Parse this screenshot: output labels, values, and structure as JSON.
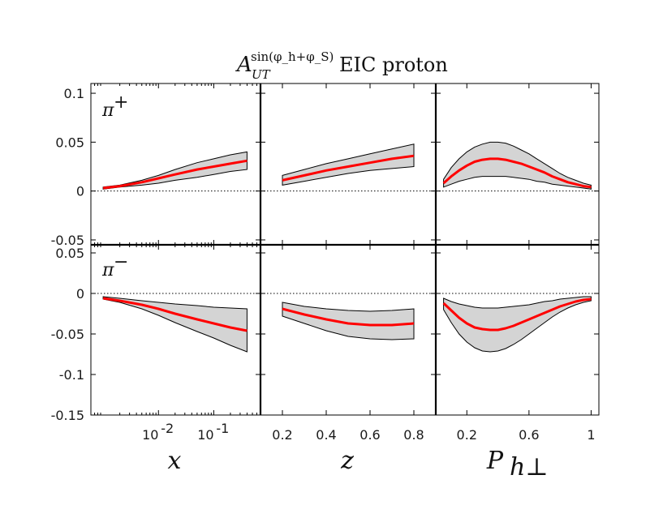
{
  "figure": {
    "title_main": "A",
    "title_sup": "sin(φ_h+φ_S)",
    "title_sub": "UT",
    "title_rest": "EIC proton"
  },
  "chart_data": [
    {
      "type": "line",
      "panel": "pi-plus x",
      "label_base": "π",
      "label_sup": "+",
      "xlabel": "x",
      "xscale": "log",
      "xlim": [
        0.0006,
        0.7
      ],
      "xticks": [
        0.01,
        0.1
      ],
      "xtick_base": "10",
      "xtick_exps": [
        "-2",
        "-1"
      ],
      "ylim": [
        -0.055,
        0.11
      ],
      "yticks": [
        -0.05,
        0,
        0.05,
        0.1
      ],
      "ytick_labels": [
        "-0.05",
        "0",
        "0.05",
        "0.1"
      ],
      "x": [
        0.001,
        0.002,
        0.005,
        0.01,
        0.02,
        0.05,
        0.1,
        0.2,
        0.4
      ],
      "central": [
        0.003,
        0.005,
        0.009,
        0.013,
        0.017,
        0.022,
        0.025,
        0.028,
        0.031
      ],
      "band_low": [
        0.002,
        0.004,
        0.006,
        0.008,
        0.011,
        0.014,
        0.017,
        0.02,
        0.022
      ],
      "band_high": [
        0.004,
        0.006,
        0.011,
        0.016,
        0.022,
        0.029,
        0.033,
        0.037,
        0.04
      ]
    },
    {
      "type": "line",
      "panel": "pi-plus z",
      "xlabel": "z",
      "xlim": [
        0.1,
        0.9
      ],
      "xticks": [
        0.2,
        0.4,
        0.6,
        0.8
      ],
      "xtick_labels": [
        "0.2",
        "0.4",
        "0.6",
        "0.8"
      ],
      "ylim": [
        -0.055,
        0.11
      ],
      "x": [
        0.2,
        0.3,
        0.4,
        0.5,
        0.6,
        0.7,
        0.8
      ],
      "central": [
        0.011,
        0.016,
        0.021,
        0.025,
        0.029,
        0.033,
        0.036
      ],
      "band_low": [
        0.006,
        0.01,
        0.014,
        0.018,
        0.021,
        0.023,
        0.025
      ],
      "band_high": [
        0.016,
        0.022,
        0.028,
        0.033,
        0.038,
        0.043,
        0.048
      ]
    },
    {
      "type": "line",
      "panel": "pi-plus Phperp",
      "xlabel": "P_h⊥",
      "xlim": [
        0.0,
        1.05
      ],
      "xticks": [
        0.2,
        0.6,
        1.0
      ],
      "xtick_labels": [
        "0.2",
        "0.6",
        "1"
      ],
      "ylim": [
        -0.055,
        0.11
      ],
      "x": [
        0.05,
        0.1,
        0.15,
        0.2,
        0.25,
        0.3,
        0.35,
        0.4,
        0.45,
        0.5,
        0.55,
        0.6,
        0.65,
        0.7,
        0.75,
        0.8,
        0.85,
        0.9,
        0.95,
        1.0
      ],
      "central": [
        0.008,
        0.015,
        0.021,
        0.026,
        0.03,
        0.032,
        0.033,
        0.033,
        0.032,
        0.03,
        0.028,
        0.025,
        0.022,
        0.019,
        0.015,
        0.012,
        0.009,
        0.007,
        0.005,
        0.004
      ],
      "band_low": [
        0.004,
        0.007,
        0.01,
        0.012,
        0.014,
        0.015,
        0.015,
        0.015,
        0.015,
        0.014,
        0.013,
        0.012,
        0.01,
        0.009,
        0.007,
        0.006,
        0.005,
        0.004,
        0.003,
        0.002
      ],
      "band_high": [
        0.012,
        0.024,
        0.033,
        0.04,
        0.045,
        0.048,
        0.05,
        0.05,
        0.049,
        0.046,
        0.042,
        0.038,
        0.033,
        0.028,
        0.023,
        0.018,
        0.014,
        0.011,
        0.008,
        0.006
      ]
    },
    {
      "type": "line",
      "panel": "pi-minus x",
      "label_base": "π",
      "label_sup": "−",
      "xlabel": "x",
      "xscale": "log",
      "xlim": [
        0.0006,
        0.7
      ],
      "xticks": [
        0.01,
        0.1
      ],
      "xtick_base": "10",
      "xtick_exps": [
        "-2",
        "-1"
      ],
      "ylim": [
        -0.15,
        0.06
      ],
      "yticks": [
        -0.15,
        -0.1,
        -0.05,
        0,
        0.05
      ],
      "ytick_labels": [
        "-0.15",
        "-0.1",
        "-0.05",
        "0",
        "0.05"
      ],
      "x": [
        0.001,
        0.002,
        0.005,
        0.01,
        0.02,
        0.05,
        0.1,
        0.2,
        0.4
      ],
      "central": [
        -0.006,
        -0.009,
        -0.014,
        -0.019,
        -0.025,
        -0.032,
        -0.037,
        -0.042,
        -0.046
      ],
      "band_low": [
        -0.007,
        -0.011,
        -0.019,
        -0.027,
        -0.036,
        -0.047,
        -0.055,
        -0.064,
        -0.072
      ],
      "band_high": [
        -0.004,
        -0.006,
        -0.009,
        -0.011,
        -0.013,
        -0.015,
        -0.017,
        -0.018,
        -0.019
      ]
    },
    {
      "type": "line",
      "panel": "pi-minus z",
      "xlabel": "z",
      "xlim": [
        0.1,
        0.9
      ],
      "xticks": [
        0.2,
        0.4,
        0.6,
        0.8
      ],
      "xtick_labels": [
        "0.2",
        "0.4",
        "0.6",
        "0.8"
      ],
      "ylim": [
        -0.15,
        0.06
      ],
      "x": [
        0.2,
        0.3,
        0.4,
        0.5,
        0.6,
        0.7,
        0.8
      ],
      "central": [
        -0.019,
        -0.026,
        -0.032,
        -0.037,
        -0.039,
        -0.039,
        -0.037
      ],
      "band_low": [
        -0.028,
        -0.037,
        -0.046,
        -0.053,
        -0.056,
        -0.057,
        -0.056
      ],
      "band_high": [
        -0.011,
        -0.016,
        -0.019,
        -0.021,
        -0.022,
        -0.021,
        -0.019
      ]
    },
    {
      "type": "line",
      "panel": "pi-minus Phperp",
      "xlabel": "P_h⊥",
      "xlim": [
        0.0,
        1.05
      ],
      "xticks": [
        0.2,
        0.6,
        1.0
      ],
      "xtick_labels": [
        "0.2",
        "0.6",
        "1"
      ],
      "ylim": [
        -0.15,
        0.06
      ],
      "x": [
        0.05,
        0.1,
        0.15,
        0.2,
        0.25,
        0.3,
        0.35,
        0.4,
        0.45,
        0.5,
        0.55,
        0.6,
        0.65,
        0.7,
        0.75,
        0.8,
        0.85,
        0.9,
        0.95,
        1.0
      ],
      "central": [
        -0.012,
        -0.021,
        -0.03,
        -0.037,
        -0.042,
        -0.044,
        -0.045,
        -0.045,
        -0.043,
        -0.04,
        -0.036,
        -0.032,
        -0.028,
        -0.024,
        -0.02,
        -0.016,
        -0.013,
        -0.01,
        -0.008,
        -0.007
      ],
      "band_low": [
        -0.02,
        -0.036,
        -0.05,
        -0.06,
        -0.067,
        -0.071,
        -0.072,
        -0.071,
        -0.068,
        -0.063,
        -0.057,
        -0.05,
        -0.043,
        -0.036,
        -0.029,
        -0.023,
        -0.018,
        -0.014,
        -0.011,
        -0.009
      ],
      "band_high": [
        -0.006,
        -0.01,
        -0.013,
        -0.015,
        -0.017,
        -0.018,
        -0.018,
        -0.018,
        -0.017,
        -0.016,
        -0.015,
        -0.014,
        -0.012,
        -0.01,
        -0.009,
        -0.007,
        -0.006,
        -0.005,
        -0.004,
        -0.004
      ]
    }
  ],
  "colors": {
    "central_line": "#ff0000",
    "band_fill": "#d4d4d4",
    "band_edge": "#000000",
    "frame": "#000000",
    "zero_line": "#000000"
  }
}
